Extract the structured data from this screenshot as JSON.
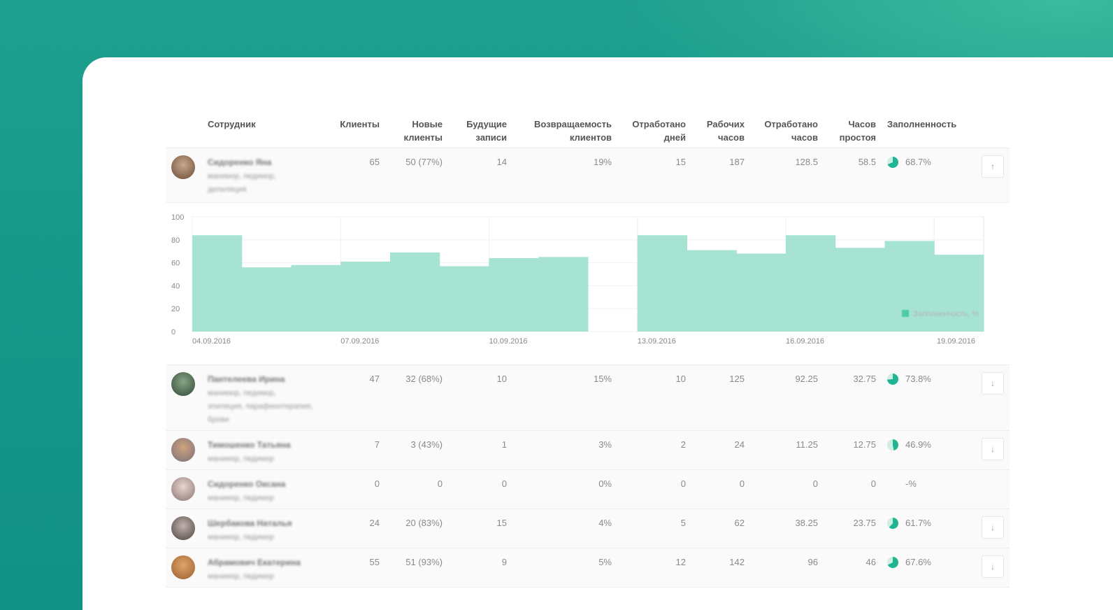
{
  "colors": {
    "accent": "#1fb594",
    "bar": "#a6e3d3",
    "background": "#17998a"
  },
  "headers": {
    "employee": "Сотрудник",
    "clients": "Клиенты",
    "new_clients": [
      "Новые",
      "клиенты"
    ],
    "future": [
      "Будущие",
      "записи"
    ],
    "returning": [
      "Возвращаемость",
      "клиентов"
    ],
    "days": [
      "Отработано",
      "дней"
    ],
    "work_hours": [
      "Рабочих",
      "часов"
    ],
    "worked_hours": [
      "Отработано",
      "часов"
    ],
    "idle_hours": [
      "Часов",
      "простоя"
    ],
    "fill": "Заполненность"
  },
  "rows": [
    {
      "name": "Сидоренко Яна",
      "roles": [
        "маникюр, педикюр,",
        "депиляция"
      ],
      "clients": "65",
      "new_clients": "50 (77%)",
      "future": "14",
      "returning": "19%",
      "days": "15",
      "work_hours": "187",
      "worked_hours": "128.5",
      "idle_hours": "58.5",
      "fill": "68.7%",
      "fill_value": 0.687,
      "arrow": "↑",
      "arrow_icon": "arrow-up-icon"
    },
    {
      "name": "Пантелеева Ирина",
      "roles": [
        "маникюр, педикюр,",
        "эпиляция, парафинотерапия,",
        "брови"
      ],
      "clients": "47",
      "new_clients": "32 (68%)",
      "future": "10",
      "returning": "15%",
      "days": "10",
      "work_hours": "125",
      "worked_hours": "92.25",
      "idle_hours": "32.75",
      "fill": "73.8%",
      "fill_value": 0.738,
      "arrow": "↓",
      "arrow_icon": "arrow-down-icon"
    },
    {
      "name": "Тимошенко Татьяна",
      "roles": [
        "маникюр, педикюр"
      ],
      "clients": "7",
      "new_clients": "3 (43%)",
      "future": "1",
      "returning": "3%",
      "days": "2",
      "work_hours": "24",
      "worked_hours": "11.25",
      "idle_hours": "12.75",
      "fill": "46.9%",
      "fill_value": 0.469,
      "arrow": "↓",
      "arrow_icon": "arrow-down-icon"
    },
    {
      "name": "Сидоренко Оксана",
      "roles": [
        "маникюр, педикюр"
      ],
      "clients": "0",
      "new_clients": "0",
      "future": "0",
      "returning": "0%",
      "days": "0",
      "work_hours": "0",
      "worked_hours": "0",
      "idle_hours": "0",
      "fill": "-%",
      "fill_value": null,
      "arrow": "",
      "arrow_icon": ""
    },
    {
      "name": "Шербакова Наталья",
      "roles": [
        "маникюр, педикюр"
      ],
      "clients": "24",
      "new_clients": "20 (83%)",
      "future": "15",
      "returning": "4%",
      "days": "5",
      "work_hours": "62",
      "worked_hours": "38.25",
      "idle_hours": "23.75",
      "fill": "61.7%",
      "fill_value": 0.617,
      "arrow": "↓",
      "arrow_icon": "arrow-down-icon"
    },
    {
      "name": "Абрамович Екатерина",
      "roles": [
        "маникюр, педикюр"
      ],
      "clients": "55",
      "new_clients": "51 (93%)",
      "future": "9",
      "returning": "5%",
      "days": "12",
      "work_hours": "142",
      "worked_hours": "96",
      "idle_hours": "46",
      "fill": "67.6%",
      "fill_value": 0.676,
      "arrow": "↓",
      "arrow_icon": "arrow-down-icon"
    }
  ],
  "chart_data": {
    "type": "bar",
    "legend": "Заполненность, %",
    "legend_position": "top-right",
    "ylim": [
      0,
      100
    ],
    "yticks": [
      "100",
      "80",
      "60",
      "40",
      "20",
      "0"
    ],
    "xticks": [
      "04.09.2016",
      "07.09.2016",
      "10.09.2016",
      "13.09.2016",
      "16.09.2016",
      "19.09.2016"
    ],
    "categories": [
      "04.09.2016",
      "05.09.2016",
      "06.09.2016",
      "07.09.2016",
      "08.09.2016",
      "09.09.2016",
      "10.09.2016",
      "11.09.2016",
      "12.09.2016",
      "13.09.2016",
      "14.09.2016",
      "15.09.2016",
      "16.09.2016",
      "17.09.2016",
      "18.09.2016",
      "19.09.2016"
    ],
    "values": [
      84,
      56,
      58,
      61,
      69,
      57,
      64,
      65,
      0,
      84,
      71,
      68,
      84,
      73,
      79,
      67
    ],
    "grid": true
  }
}
